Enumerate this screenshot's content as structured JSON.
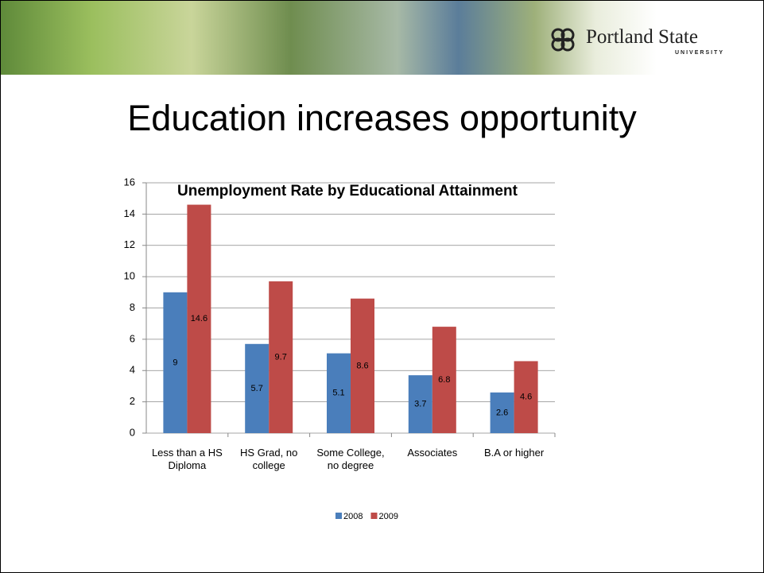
{
  "header": {
    "brand": "Portland State",
    "brand_sub": "UNIVERSITY"
  },
  "slide_title": "Education increases opportunity",
  "chart_data": {
    "type": "bar",
    "title": "Unemployment Rate by Educational Attainment",
    "categories": [
      "Less than a HS Diploma",
      "HS Grad, no college",
      "Some College, no degree",
      "Associates",
      "B.A or higher"
    ],
    "series": [
      {
        "name": "2008",
        "color": "#4a7ebb",
        "values": [
          9,
          5.7,
          5.1,
          3.7,
          2.6
        ]
      },
      {
        "name": "2009",
        "color": "#be4b48",
        "values": [
          14.6,
          9.7,
          8.6,
          6.8,
          4.6
        ]
      }
    ],
    "ylim": [
      0,
      16
    ],
    "yticks": [
      0,
      2,
      4,
      6,
      8,
      10,
      12,
      14,
      16
    ],
    "grid": true,
    "legend": "bottom"
  }
}
